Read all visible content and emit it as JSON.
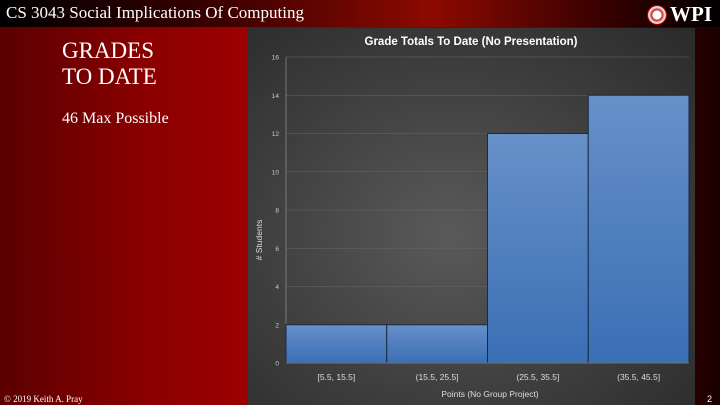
{
  "header": {
    "course": "CS 3043 Social Implications Of Computing",
    "logo_text": "WPI"
  },
  "slide": {
    "title_line1": "GRADES",
    "title_line2": "TO DATE",
    "subtitle": "46 Max Possible",
    "footer": "© 2019 Keith A. Pray",
    "page_number": "2"
  },
  "chart_data": {
    "type": "bar",
    "title": "Grade Totals To Date (No Presentation)",
    "xlabel": "Points (No Group Project)",
    "ylabel": "# Students",
    "categories": [
      "[5.5, 15.5]",
      "(15.5, 25.5]",
      "(25.5, 35.5]",
      "(35.5, 45.5]"
    ],
    "values": [
      2,
      2,
      12,
      14
    ],
    "ylim": [
      0,
      16
    ],
    "yticks": [
      0,
      2,
      4,
      6,
      8,
      10,
      12,
      14,
      16
    ],
    "grid": true,
    "bar_color": "#4a7fc1"
  }
}
